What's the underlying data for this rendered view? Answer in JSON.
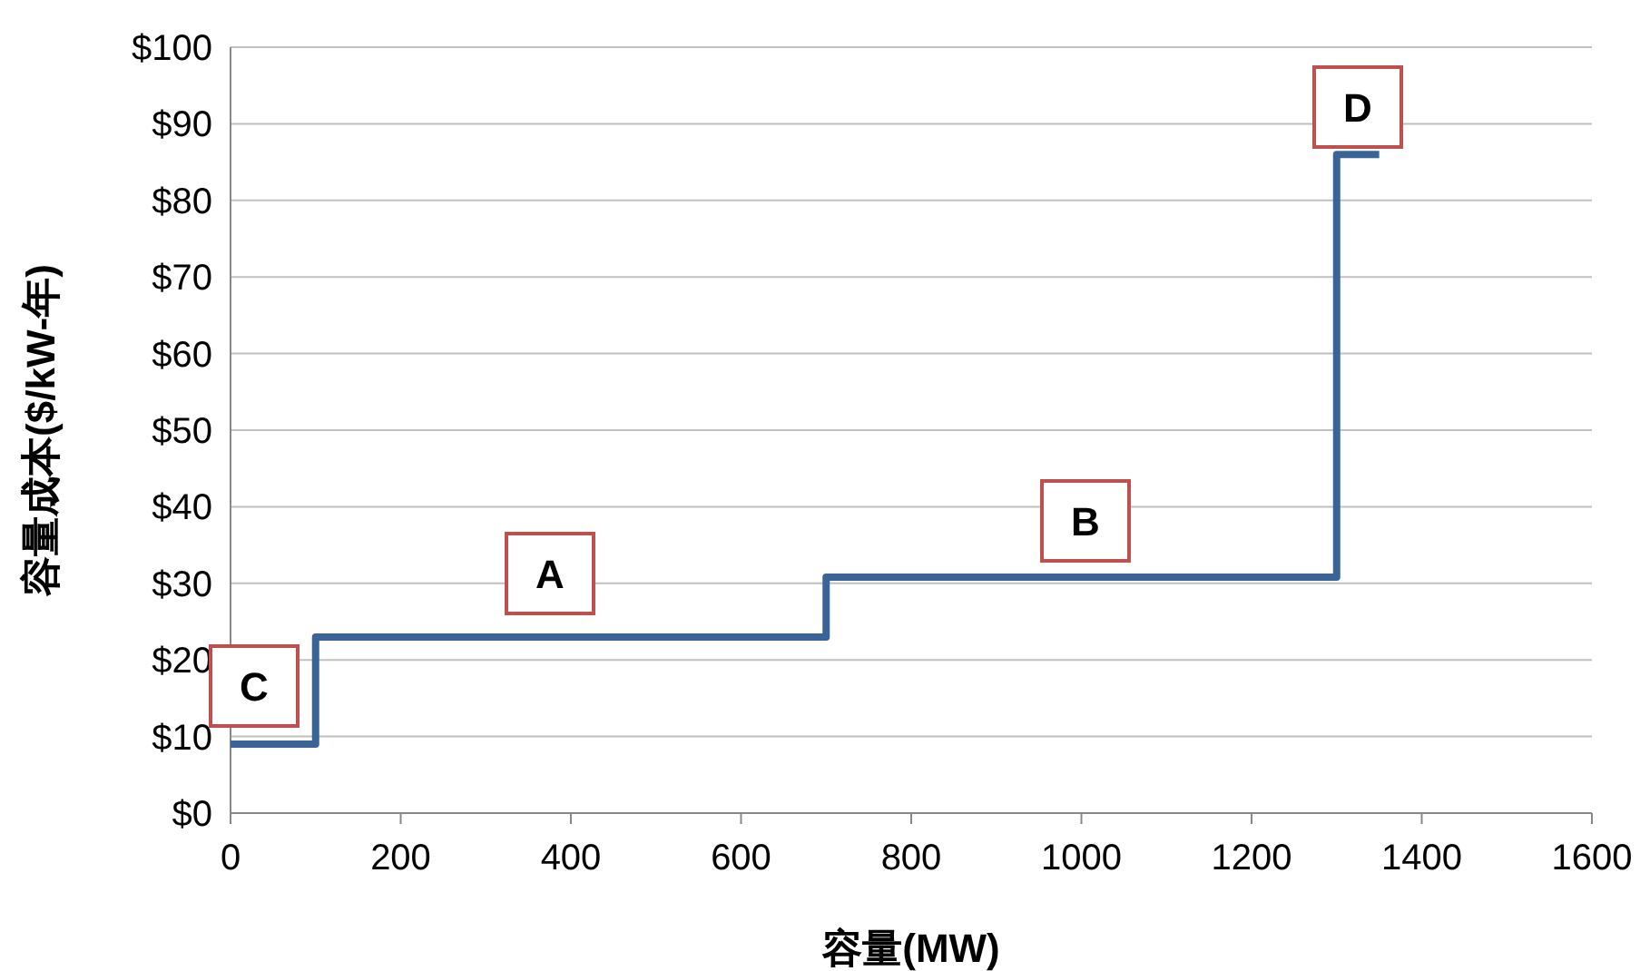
{
  "chart_data": {
    "type": "step",
    "xlabel": "容量(MW)",
    "ylabel": "容量成本($/kW-年)",
    "x": [
      0,
      100,
      700,
      1300,
      1350
    ],
    "values": [
      9,
      23,
      30.8,
      86,
      86
    ],
    "color": "#3a6496",
    "xlim": [
      0,
      1600
    ],
    "xticks": [
      0,
      200,
      400,
      600,
      800,
      1000,
      1200,
      1400,
      1600
    ],
    "ylim": [
      0,
      100
    ],
    "yticks": [
      {
        "value": 0,
        "label": "$0"
      },
      {
        "value": 10,
        "label": "$10"
      },
      {
        "value": 20,
        "label": "$20"
      },
      {
        "value": 30,
        "label": "$30"
      },
      {
        "value": 40,
        "label": "$40"
      },
      {
        "value": 50,
        "label": "$50"
      },
      {
        "value": 60,
        "label": "$60"
      },
      {
        "value": 70,
        "label": "$70"
      },
      {
        "value": 80,
        "label": "$80"
      },
      {
        "value": 90,
        "label": "$90"
      },
      {
        "value": 100,
        "label": "$100"
      }
    ],
    "grid": "y",
    "annotations": [
      "A",
      "B",
      "C",
      "D"
    ]
  }
}
